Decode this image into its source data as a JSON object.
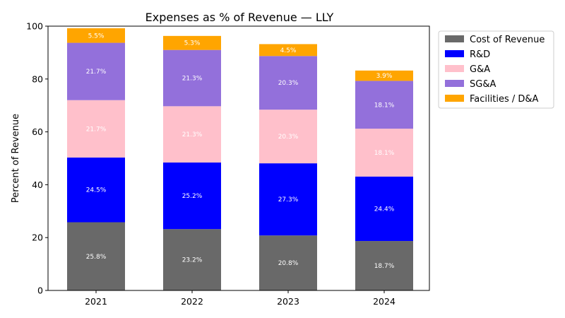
{
  "chart_data": {
    "type": "bar",
    "stacked": true,
    "title": "Expenses as % of Revenue — LLY",
    "xlabel": "",
    "ylabel": "Percent of Revenue",
    "ylim": [
      0,
      100
    ],
    "yticks": [
      "0",
      "20",
      "40",
      "60",
      "80",
      "100"
    ],
    "categories": [
      "2021",
      "2022",
      "2023",
      "2024"
    ],
    "legend_position": "outside-top-right",
    "series": [
      {
        "name": "Cost of Revenue",
        "color": "#696969",
        "values": [
          25.8,
          23.2,
          20.8,
          18.7
        ],
        "labels": [
          "25.8%",
          "23.2%",
          "20.8%",
          "18.7%"
        ]
      },
      {
        "name": "R&D",
        "color": "#0000ff",
        "values": [
          24.5,
          25.2,
          27.3,
          24.4
        ],
        "labels": [
          "24.5%",
          "25.2%",
          "27.3%",
          "24.4%"
        ]
      },
      {
        "name": "G&A",
        "color": "#ffc0cb",
        "values": [
          21.7,
          21.3,
          20.3,
          18.1
        ],
        "labels": [
          "21.7%",
          "21.3%",
          "20.3%",
          "18.1%"
        ]
      },
      {
        "name": "SG&A",
        "color": "#9370db",
        "values": [
          21.7,
          21.3,
          20.3,
          18.1
        ],
        "labels": [
          "21.7%",
          "21.3%",
          "20.3%",
          "18.1%"
        ]
      },
      {
        "name": "Facilities / D&A",
        "color": "#ffa500",
        "values": [
          5.5,
          5.3,
          4.5,
          3.9
        ],
        "labels": [
          "5.5%",
          "5.3%",
          "4.5%",
          "3.9%"
        ]
      }
    ]
  }
}
